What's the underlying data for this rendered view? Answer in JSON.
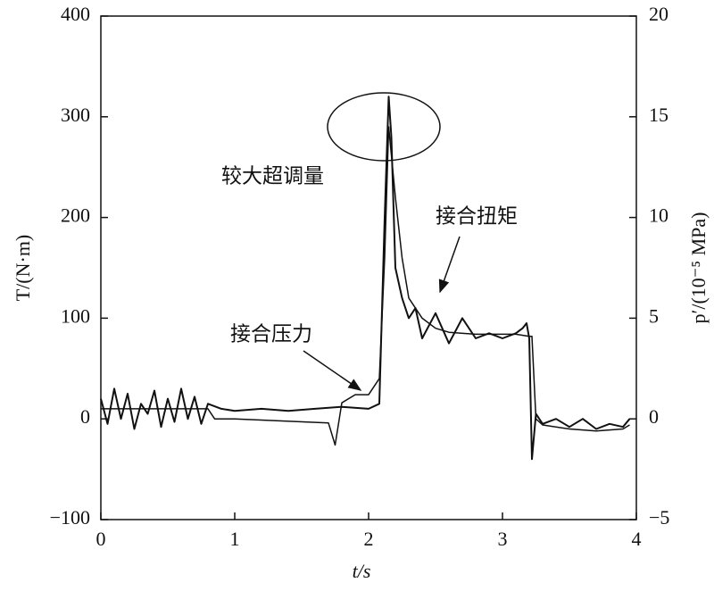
{
  "chart_data": {
    "type": "line",
    "x_label": "t/s",
    "y_label": "T/(N·m)",
    "y2_label": "p′/(10⁻⁵ MPa)",
    "annotation": "较大超调量",
    "xlim": [
      0,
      4
    ],
    "xticks": [
      0,
      1,
      2,
      3,
      4
    ],
    "ylim": [
      -100,
      400
    ],
    "yticks": [
      {
        "value": -100,
        "label": "−100"
      },
      0,
      100,
      200,
      300,
      400
    ],
    "y2lim": [
      -5,
      20
    ],
    "y2ticks": [
      {
        "value": -5,
        "label": "−5"
      },
      0,
      5,
      10,
      15,
      20
    ],
    "series": [
      {
        "name": "接合扭矩",
        "color": "#111111",
        "x": [
          0,
          0.05,
          0.1,
          0.15,
          0.2,
          0.25,
          0.3,
          0.35,
          0.4,
          0.45,
          0.5,
          0.55,
          0.6,
          0.65,
          0.7,
          0.75,
          0.8,
          0.9,
          1.0,
          1.2,
          1.4,
          1.6,
          1.8,
          2.0,
          2.08,
          2.12,
          2.15,
          2.17,
          2.2,
          2.25,
          2.3,
          2.35,
          2.4,
          2.5,
          2.6,
          2.7,
          2.8,
          2.9,
          3.0,
          3.1,
          3.15,
          3.18,
          3.2,
          3.22,
          3.25,
          3.3,
          3.4,
          3.5,
          3.6,
          3.7,
          3.8,
          3.9,
          3.95
        ],
        "values": [
          20,
          -5,
          30,
          0,
          25,
          -10,
          15,
          5,
          28,
          -8,
          20,
          -3,
          30,
          0,
          22,
          -5,
          15,
          10,
          8,
          10,
          8,
          10,
          12,
          10,
          15,
          200,
          320,
          280,
          150,
          120,
          100,
          110,
          80,
          105,
          75,
          100,
          80,
          85,
          80,
          85,
          90,
          95,
          80,
          -40,
          5,
          -5,
          0,
          -8,
          0,
          -10,
          -5,
          -8,
          0
        ]
      },
      {
        "name": "接合压力",
        "color": "#111111",
        "axis": "y2",
        "x": [
          0,
          0.8,
          0.85,
          1.0,
          1.7,
          1.75,
          1.8,
          1.9,
          2.0,
          2.08,
          2.12,
          2.15,
          2.2,
          2.25,
          2.3,
          2.4,
          2.5,
          2.6,
          2.8,
          3.0,
          3.1,
          3.2,
          3.22,
          3.25,
          3.3,
          3.5,
          3.7,
          3.9,
          3.95
        ],
        "values": [
          0.5,
          0.5,
          0,
          0,
          -0.2,
          -1.3,
          0.8,
          1.2,
          1.2,
          2,
          8,
          14.5,
          11,
          8,
          6,
          5,
          4.5,
          4.3,
          4.2,
          4.2,
          4.2,
          4.1,
          4.1,
          0,
          -0.3,
          -0.5,
          -0.6,
          -0.5,
          -0.3
        ]
      }
    ]
  }
}
